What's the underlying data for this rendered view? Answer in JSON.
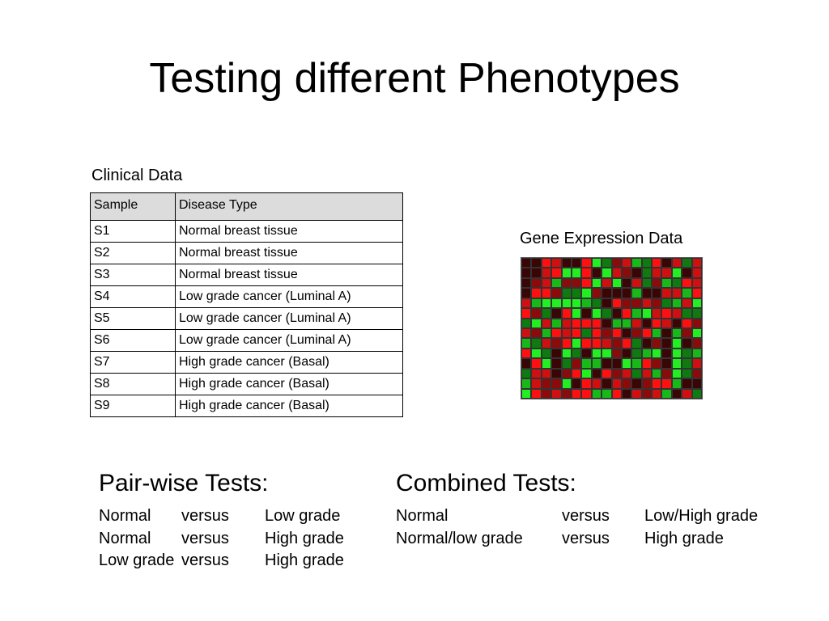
{
  "slide": {
    "title": "Testing different Phenotypes"
  },
  "clinical": {
    "caption": "Clinical Data",
    "headers": [
      "Sample",
      "Disease Type"
    ],
    "rows": [
      [
        "S1",
        "Normal breast tissue"
      ],
      [
        "S2",
        "Normal breast tissue"
      ],
      [
        "S3",
        "Normal breast tissue"
      ],
      [
        "S4",
        "Low grade cancer (Luminal A)"
      ],
      [
        "S5",
        "Low grade cancer (Luminal A)"
      ],
      [
        "S6",
        "Low grade cancer (Luminal A)"
      ],
      [
        "S7",
        "High grade cancer (Basal)"
      ],
      [
        "S8",
        "High grade cancer (Basal)"
      ],
      [
        "S9",
        "High grade cancer (Basal)"
      ]
    ]
  },
  "gene_expression": {
    "caption": "Gene Expression Data",
    "colors": {
      "bright_red": "#ff1010",
      "red": "#d01010",
      "dark_red": "#8c0a0a",
      "darkest": "#3a0505",
      "dark_green": "#0f7a0f",
      "green": "#18b818",
      "bright_green": "#22ee22"
    }
  },
  "pairwise": {
    "heading": "Pair-wise Tests:",
    "rows": [
      [
        "Normal",
        "versus",
        "Low grade"
      ],
      [
        "Normal",
        "versus",
        "High grade"
      ],
      [
        "Low grade",
        "versus",
        "High grade"
      ]
    ]
  },
  "combined": {
    "heading": "Combined Tests:",
    "rows": [
      [
        "Normal",
        "versus",
        "Low/High grade"
      ],
      [
        "Normal/low grade",
        "versus",
        "High grade"
      ]
    ]
  }
}
